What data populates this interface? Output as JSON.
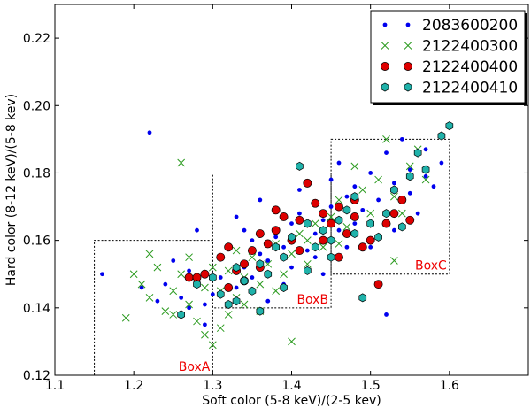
{
  "chart_data": {
    "type": "scatter",
    "xlabel": "Soft color (5-8 keV)/(2-5 kev)",
    "ylabel": "Hard color (8-12 keV)/(5-8 kev)",
    "xlim": [
      1.1,
      1.7
    ],
    "ylim": [
      0.12,
      0.23
    ],
    "x_ticks": [
      "1.1",
      "1.2",
      "1.3",
      "1.4",
      "1.5",
      "1.6"
    ],
    "y_ticks": [
      "0.12",
      "0.14",
      "0.16",
      "0.18",
      "0.20",
      "0.22"
    ],
    "legend_position": "top-right",
    "colors": {
      "blue": "#0000ee",
      "green": "#2a9a1e",
      "red": "#dd0000",
      "cyan": "#20b2aa",
      "boxlabel": "#ee0000"
    },
    "boxes": [
      {
        "label": "BoxA",
        "x0": 1.15,
        "x1": 1.3,
        "y0": 0.12,
        "y1": 0.16
      },
      {
        "label": "BoxB",
        "x0": 1.3,
        "x1": 1.45,
        "y0": 0.14,
        "y1": 0.18
      },
      {
        "label": "BoxC",
        "x0": 1.45,
        "x1": 1.6,
        "y0": 0.15,
        "y1": 0.19
      }
    ],
    "series": [
      {
        "name": "2083600200",
        "marker": "dot",
        "color": "#0000ee",
        "points": [
          [
            1.22,
            0.192
          ],
          [
            1.16,
            0.15
          ],
          [
            1.21,
            0.146
          ],
          [
            1.23,
            0.142
          ],
          [
            1.24,
            0.147
          ],
          [
            1.26,
            0.143
          ],
          [
            1.27,
            0.151
          ],
          [
            1.28,
            0.148
          ],
          [
            1.29,
            0.141
          ],
          [
            1.29,
            0.135
          ],
          [
            1.31,
            0.155
          ],
          [
            1.32,
            0.158
          ],
          [
            1.33,
            0.146
          ],
          [
            1.34,
            0.152
          ],
          [
            1.35,
            0.149
          ],
          [
            1.36,
            0.156
          ],
          [
            1.37,
            0.154
          ],
          [
            1.38,
            0.161
          ],
          [
            1.39,
            0.158
          ],
          [
            1.4,
            0.165
          ],
          [
            1.4,
            0.152
          ],
          [
            1.41,
            0.168
          ],
          [
            1.42,
            0.157
          ],
          [
            1.43,
            0.162
          ],
          [
            1.44,
            0.166
          ],
          [
            1.45,
            0.17
          ],
          [
            1.46,
            0.163
          ],
          [
            1.47,
            0.173
          ],
          [
            1.47,
            0.158
          ],
          [
            1.48,
            0.176
          ],
          [
            1.49,
            0.169
          ],
          [
            1.5,
            0.18
          ],
          [
            1.5,
            0.16
          ],
          [
            1.51,
            0.172
          ],
          [
            1.52,
            0.186
          ],
          [
            1.53,
            0.177
          ],
          [
            1.54,
            0.19
          ],
          [
            1.55,
            0.181
          ],
          [
            1.56,
            0.168
          ],
          [
            1.57,
            0.187
          ],
          [
            1.58,
            0.176
          ],
          [
            1.59,
            0.183
          ],
          [
            1.52,
            0.138
          ],
          [
            1.5,
            0.158
          ],
          [
            1.45,
            0.178
          ],
          [
            1.43,
            0.155
          ],
          [
            1.37,
            0.142
          ],
          [
            1.33,
            0.167
          ],
          [
            1.28,
            0.163
          ],
          [
            1.25,
            0.154
          ],
          [
            1.36,
            0.172
          ],
          [
            1.44,
            0.15
          ],
          [
            1.3,
            0.144
          ],
          [
            1.27,
            0.14
          ],
          [
            1.41,
            0.175
          ],
          [
            1.46,
            0.183
          ],
          [
            1.35,
            0.16
          ],
          [
            1.39,
            0.147
          ],
          [
            1.48,
            0.165
          ],
          [
            1.53,
            0.163
          ],
          [
            1.55,
            0.174
          ],
          [
            1.57,
            0.179
          ],
          [
            1.31,
            0.149
          ],
          [
            1.34,
            0.163
          ]
        ]
      },
      {
        "name": "2122400300",
        "marker": "x",
        "color": "#2a9a1e",
        "points": [
          [
            1.19,
            0.137
          ],
          [
            1.2,
            0.15
          ],
          [
            1.21,
            0.147
          ],
          [
            1.22,
            0.143
          ],
          [
            1.23,
            0.152
          ],
          [
            1.24,
            0.139
          ],
          [
            1.25,
            0.145
          ],
          [
            1.26,
            0.183
          ],
          [
            1.26,
            0.15
          ],
          [
            1.27,
            0.141
          ],
          [
            1.28,
            0.148
          ],
          [
            1.29,
            0.132
          ],
          [
            1.29,
            0.146
          ],
          [
            1.3,
            0.129
          ],
          [
            1.3,
            0.152
          ],
          [
            1.31,
            0.145
          ],
          [
            1.32,
            0.151
          ],
          [
            1.32,
            0.138
          ],
          [
            1.33,
            0.143
          ],
          [
            1.34,
            0.149
          ],
          [
            1.35,
            0.155
          ],
          [
            1.36,
            0.147
          ],
          [
            1.37,
            0.153
          ],
          [
            1.38,
            0.159
          ],
          [
            1.39,
            0.15
          ],
          [
            1.4,
            0.13
          ],
          [
            1.4,
            0.156
          ],
          [
            1.41,
            0.162
          ],
          [
            1.42,
            0.16
          ],
          [
            1.43,
            0.165
          ],
          [
            1.44,
            0.158
          ],
          [
            1.45,
            0.167
          ],
          [
            1.46,
            0.172
          ],
          [
            1.47,
            0.164
          ],
          [
            1.48,
            0.182
          ],
          [
            1.49,
            0.175
          ],
          [
            1.5,
            0.168
          ],
          [
            1.51,
            0.178
          ],
          [
            1.52,
            0.19
          ],
          [
            1.53,
            0.173
          ],
          [
            1.54,
            0.168
          ],
          [
            1.55,
            0.182
          ],
          [
            1.56,
            0.187
          ],
          [
            1.57,
            0.178
          ],
          [
            1.53,
            0.154
          ],
          [
            1.27,
            0.155
          ],
          [
            1.25,
            0.138
          ],
          [
            1.31,
            0.134
          ],
          [
            1.33,
            0.157
          ],
          [
            1.36,
            0.139
          ],
          [
            1.38,
            0.145
          ],
          [
            1.42,
            0.153
          ],
          [
            1.46,
            0.159
          ],
          [
            1.34,
            0.141
          ],
          [
            1.22,
            0.156
          ],
          [
            1.28,
            0.136
          ]
        ]
      },
      {
        "name": "2122400400",
        "marker": "circle",
        "color": "#dd0000",
        "points": [
          [
            1.27,
            0.149
          ],
          [
            1.28,
            0.149
          ],
          [
            1.29,
            0.15
          ],
          [
            1.31,
            0.155
          ],
          [
            1.32,
            0.158
          ],
          [
            1.33,
            0.151
          ],
          [
            1.34,
            0.153
          ],
          [
            1.35,
            0.157
          ],
          [
            1.36,
            0.152
          ],
          [
            1.37,
            0.159
          ],
          [
            1.38,
            0.163
          ],
          [
            1.39,
            0.167
          ],
          [
            1.4,
            0.16
          ],
          [
            1.41,
            0.166
          ],
          [
            1.42,
            0.177
          ],
          [
            1.43,
            0.171
          ],
          [
            1.44,
            0.168
          ],
          [
            1.45,
            0.165
          ],
          [
            1.46,
            0.17
          ],
          [
            1.47,
            0.162
          ],
          [
            1.48,
            0.167
          ],
          [
            1.49,
            0.158
          ],
          [
            1.5,
            0.16
          ],
          [
            1.51,
            0.147
          ],
          [
            1.52,
            0.165
          ],
          [
            1.53,
            0.168
          ],
          [
            1.54,
            0.172
          ],
          [
            1.55,
            0.166
          ],
          [
            1.32,
            0.146
          ],
          [
            1.34,
            0.148
          ],
          [
            1.36,
            0.162
          ],
          [
            1.38,
            0.169
          ],
          [
            1.41,
            0.157
          ],
          [
            1.44,
            0.16
          ],
          [
            1.46,
            0.155
          ],
          [
            1.48,
            0.172
          ]
        ]
      },
      {
        "name": "2122400410",
        "marker": "hexagon",
        "color": "#20b2aa",
        "points": [
          [
            1.26,
            0.138
          ],
          [
            1.28,
            0.147
          ],
          [
            1.3,
            0.149
          ],
          [
            1.31,
            0.144
          ],
          [
            1.32,
            0.141
          ],
          [
            1.33,
            0.152
          ],
          [
            1.34,
            0.148
          ],
          [
            1.35,
            0.145
          ],
          [
            1.36,
            0.153
          ],
          [
            1.37,
            0.15
          ],
          [
            1.38,
            0.158
          ],
          [
            1.39,
            0.155
          ],
          [
            1.4,
            0.161
          ],
          [
            1.41,
            0.182
          ],
          [
            1.42,
            0.165
          ],
          [
            1.43,
            0.158
          ],
          [
            1.44,
            0.163
          ],
          [
            1.45,
            0.16
          ],
          [
            1.46,
            0.166
          ],
          [
            1.47,
            0.169
          ],
          [
            1.48,
            0.173
          ],
          [
            1.49,
            0.143
          ],
          [
            1.5,
            0.165
          ],
          [
            1.51,
            0.161
          ],
          [
            1.52,
            0.168
          ],
          [
            1.53,
            0.175
          ],
          [
            1.54,
            0.164
          ],
          [
            1.55,
            0.179
          ],
          [
            1.56,
            0.186
          ],
          [
            1.57,
            0.181
          ],
          [
            1.59,
            0.191
          ],
          [
            1.6,
            0.194
          ],
          [
            1.36,
            0.139
          ],
          [
            1.39,
            0.146
          ],
          [
            1.42,
            0.151
          ],
          [
            1.45,
            0.155
          ],
          [
            1.48,
            0.162
          ],
          [
            1.33,
            0.142
          ]
        ]
      }
    ]
  }
}
